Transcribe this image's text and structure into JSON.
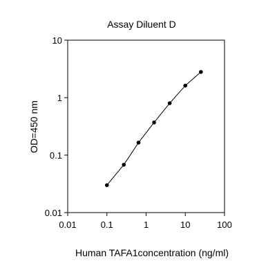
{
  "chart_data": {
    "type": "line",
    "title": "Assay Diluent D",
    "xlabel": "Human TAFA1concentration (ng/ml)",
    "ylabel": "OD=450 nm",
    "xscale": "log",
    "yscale": "log",
    "xlim": [
      0.01,
      100
    ],
    "ylim": [
      0.01,
      10
    ],
    "xticks": [
      "0.01",
      "0.1",
      "1",
      "10",
      "100"
    ],
    "yticks": [
      "10",
      "1",
      "0.1",
      "0.01"
    ],
    "grid": false,
    "legend": "none",
    "series": [
      {
        "x": [
          0.1,
          0.27,
          0.64,
          1.6,
          4.0,
          10.0,
          25.0
        ],
        "y": [
          0.03,
          0.068,
          0.165,
          0.37,
          0.8,
          1.62,
          2.8
        ]
      }
    ]
  },
  "colors": {
    "line": "#000000",
    "marker": "#000000",
    "axis": "#000000"
  }
}
